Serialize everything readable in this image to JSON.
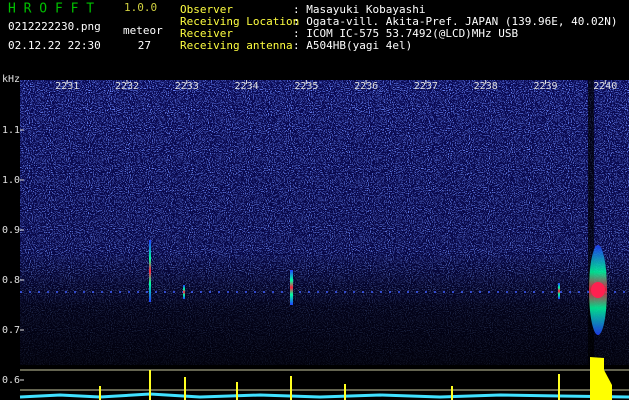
{
  "header": {
    "app": "H R O F F T",
    "version": "1.0.0",
    "file": "0212222230.png",
    "count_label": "meteor",
    "datetime": "02.12.22 22:30",
    "count": 27,
    "fields": [
      {
        "label": "Observer",
        "value": ": Masayuki Kobayashi"
      },
      {
        "label": "Receiving Location",
        "value": ": Ogata-vill. Akita-Pref. JAPAN (139.96E, 40.02N)"
      },
      {
        "label": "Receiver",
        "value": ": ICOM IC-575 53.7492(@LCD)MHz USB"
      },
      {
        "label": "Receiving antenna",
        "value": ": A504HB(yagi 4el)"
      }
    ]
  },
  "chart_data": {
    "type": "spectrogram",
    "y_label": "kHz",
    "xlim": [
      2230.21,
      2240.38
    ],
    "xticks": [
      2231,
      2232,
      2233,
      2234,
      2235,
      2236,
      2237,
      2238,
      2239,
      2240
    ],
    "ylim": [
      0.56,
      1.2
    ],
    "yticks": [
      0.6,
      0.7,
      0.8,
      0.9,
      {
        "value": 1,
        "label": "1.0"
      },
      1.1
    ]
  }
}
